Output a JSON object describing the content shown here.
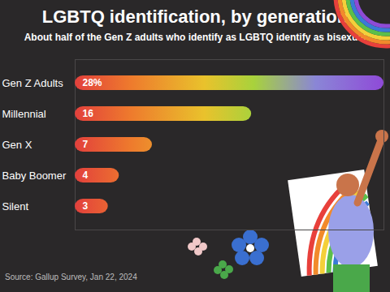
{
  "chart_data": {
    "type": "bar",
    "orientation": "horizontal",
    "title": "LGBTQ identification, by generation",
    "subtitle": "About half of the Gen Z adults who identify as LGBTQ identify as bisexual",
    "source": "Source: Gallup Survey, Jan 22, 2024",
    "categories": [
      "Gen Z Adults",
      "Millennial",
      "Gen X",
      "Baby Boomer",
      "Silent"
    ],
    "values": [
      28,
      16,
      7,
      4,
      3
    ],
    "value_labels": [
      "28%",
      "16",
      "7",
      "4",
      "3"
    ],
    "data_labels": true,
    "tick_labels": false,
    "grid": false,
    "xlim": [
      0,
      28
    ]
  }
}
